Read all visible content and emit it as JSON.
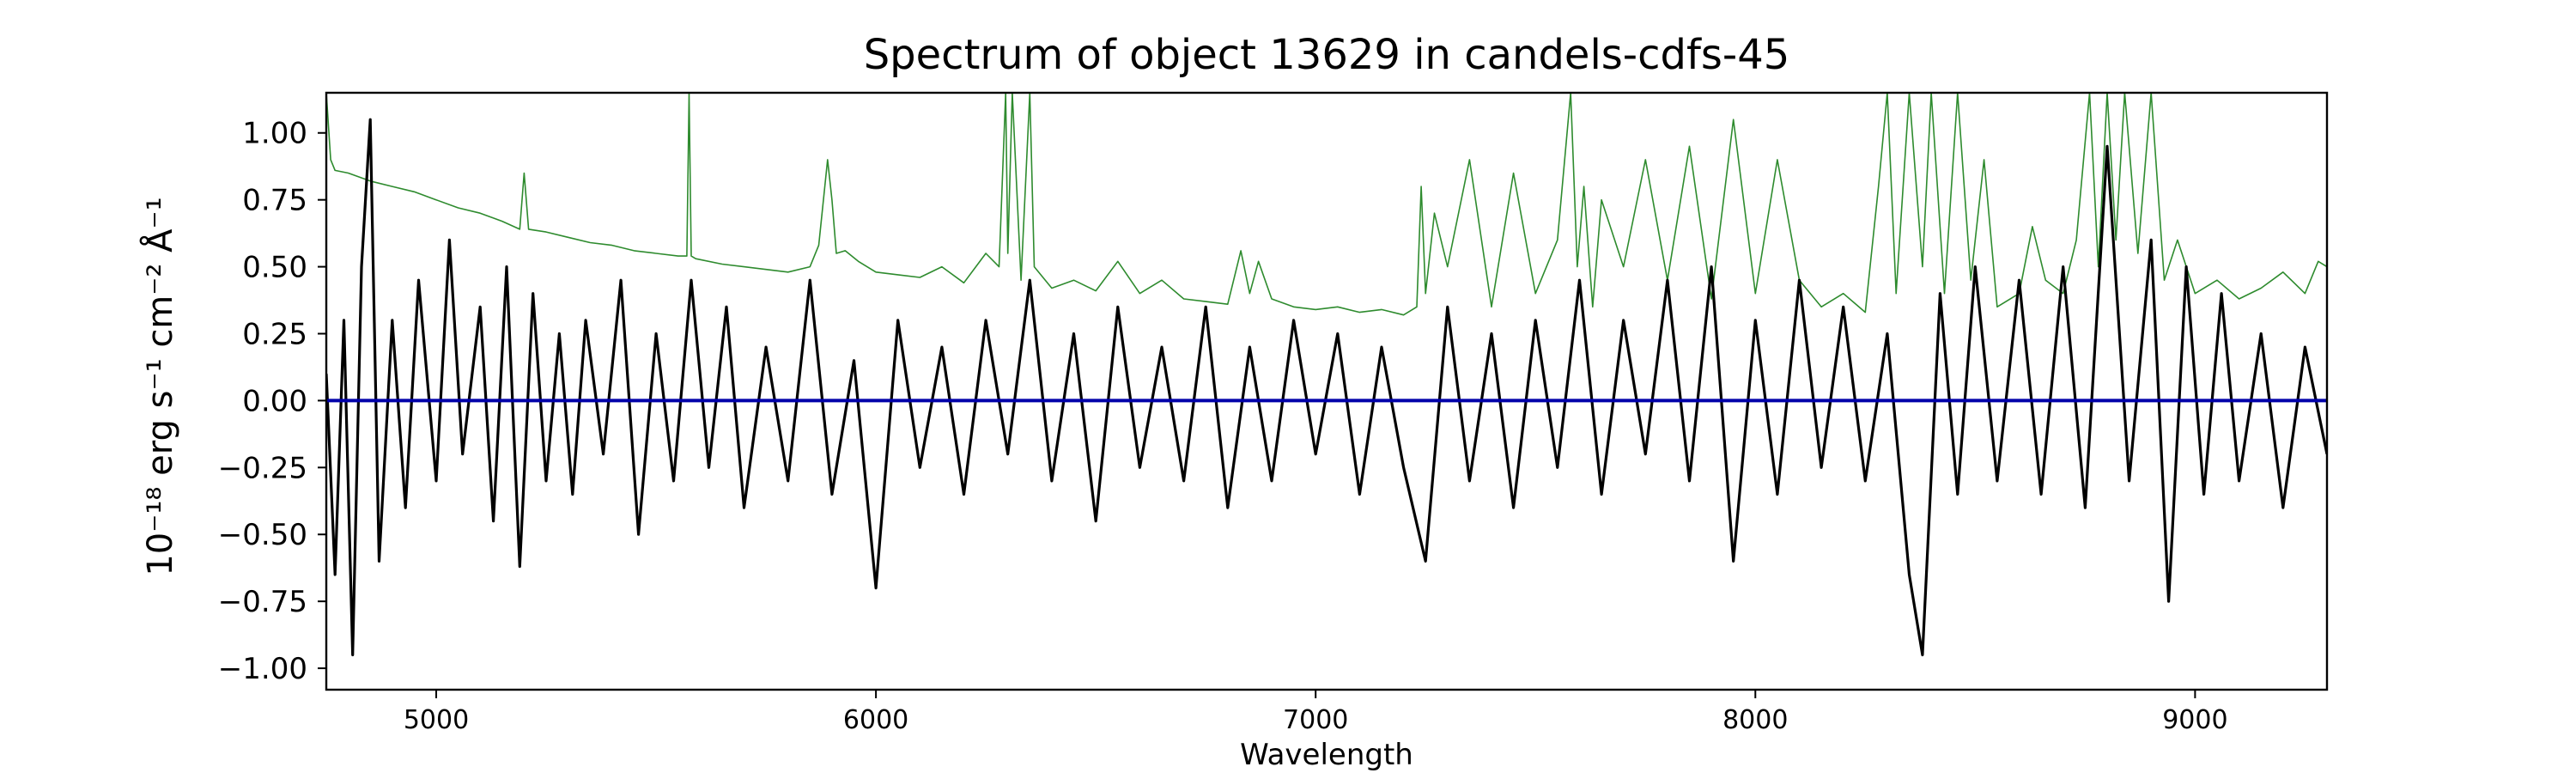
{
  "chart_data": {
    "type": "line",
    "title": "Spectrum of object 13629 in candels-cdfs-45",
    "xlabel": "Wavelength",
    "ylabel": "10⁻¹⁸ erg s⁻¹ cm⁻² Å⁻¹",
    "xlim": [
      4750,
      9300
    ],
    "ylim": [
      -1.08,
      1.15
    ],
    "xticks": [
      5000,
      6000,
      7000,
      8000,
      9000
    ],
    "yticks": [
      -1.0,
      -0.75,
      -0.5,
      -0.25,
      0.0,
      0.25,
      0.5,
      0.75,
      1.0
    ],
    "ytick_labels": [
      "−1.00",
      "−0.75",
      "−0.50",
      "−0.25",
      "0.00",
      "0.25",
      "0.50",
      "0.75",
      "1.00"
    ],
    "grid": false,
    "legend": "none",
    "series": [
      {
        "role": "flux",
        "color": "#000000",
        "x": [
          4750,
          4770,
          4790,
          4810,
          4830,
          4850,
          4870,
          4900,
          4930,
          4960,
          5000,
          5030,
          5060,
          5100,
          5130,
          5160,
          5190,
          5220,
          5250,
          5280,
          5310,
          5340,
          5380,
          5420,
          5460,
          5500,
          5540,
          5580,
          5620,
          5660,
          5700,
          5750,
          5800,
          5850,
          5900,
          5950,
          6000,
          6050,
          6100,
          6150,
          6200,
          6250,
          6300,
          6350,
          6400,
          6450,
          6500,
          6550,
          6600,
          6650,
          6700,
          6750,
          6800,
          6850,
          6900,
          6950,
          7000,
          7050,
          7100,
          7150,
          7200,
          7250,
          7300,
          7350,
          7400,
          7450,
          7500,
          7550,
          7600,
          7650,
          7700,
          7750,
          7800,
          7850,
          7900,
          7950,
          8000,
          8050,
          8100,
          8150,
          8200,
          8250,
          8300,
          8350,
          8380,
          8420,
          8460,
          8500,
          8550,
          8600,
          8650,
          8700,
          8750,
          8800,
          8850,
          8900,
          8940,
          8980,
          9020,
          9060,
          9100,
          9150,
          9200,
          9250,
          9300
        ],
        "y": [
          0.1,
          -0.65,
          0.3,
          -0.95,
          0.5,
          1.05,
          -0.6,
          0.3,
          -0.4,
          0.45,
          -0.3,
          0.6,
          -0.2,
          0.35,
          -0.45,
          0.5,
          -0.62,
          0.4,
          -0.3,
          0.25,
          -0.35,
          0.3,
          -0.2,
          0.45,
          -0.5,
          0.25,
          -0.3,
          0.45,
          -0.25,
          0.35,
          -0.4,
          0.2,
          -0.3,
          0.45,
          -0.35,
          0.15,
          -0.7,
          0.3,
          -0.25,
          0.2,
          -0.35,
          0.3,
          -0.2,
          0.45,
          -0.3,
          0.25,
          -0.45,
          0.35,
          -0.25,
          0.2,
          -0.3,
          0.35,
          -0.4,
          0.2,
          -0.3,
          0.3,
          -0.2,
          0.25,
          -0.35,
          0.2,
          -0.25,
          -0.6,
          0.35,
          -0.3,
          0.25,
          -0.4,
          0.3,
          -0.25,
          0.45,
          -0.35,
          0.3,
          -0.2,
          0.45,
          -0.3,
          0.5,
          -0.6,
          0.3,
          -0.35,
          0.45,
          -0.25,
          0.35,
          -0.3,
          0.25,
          -0.65,
          -0.95,
          0.4,
          -0.35,
          0.5,
          -0.3,
          0.45,
          -0.35,
          0.5,
          -0.4,
          0.95,
          -0.3,
          0.6,
          -0.75,
          0.5,
          -0.35,
          0.4,
          -0.3,
          0.25,
          -0.4,
          0.2,
          -0.2
        ]
      },
      {
        "role": "error",
        "color": "#2e8b2e",
        "x": [
          4750,
          4760,
          4770,
          4800,
          4850,
          4900,
          4950,
          5000,
          5050,
          5100,
          5150,
          5190,
          5200,
          5210,
          5250,
          5300,
          5350,
          5400,
          5450,
          5500,
          5550,
          5570,
          5575,
          5580,
          5590,
          5650,
          5700,
          5750,
          5800,
          5850,
          5870,
          5890,
          5900,
          5910,
          5930,
          5960,
          6000,
          6050,
          6100,
          6150,
          6200,
          6250,
          6280,
          6295,
          6300,
          6310,
          6330,
          6350,
          6360,
          6400,
          6450,
          6500,
          6550,
          6600,
          6650,
          6700,
          6750,
          6800,
          6830,
          6850,
          6870,
          6900,
          6950,
          7000,
          7050,
          7100,
          7150,
          7200,
          7230,
          7240,
          7250,
          7270,
          7300,
          7350,
          7400,
          7450,
          7500,
          7550,
          7580,
          7595,
          7610,
          7630,
          7650,
          7700,
          7750,
          7800,
          7850,
          7900,
          7950,
          8000,
          8050,
          8100,
          8150,
          8200,
          8250,
          8280,
          8300,
          8320,
          8350,
          8380,
          8400,
          8430,
          8460,
          8490,
          8520,
          8550,
          8600,
          8630,
          8660,
          8700,
          8730,
          8760,
          8780,
          8800,
          8820,
          8840,
          8870,
          8900,
          8930,
          8960,
          9000,
          9050,
          9100,
          9150,
          9200,
          9250,
          9280,
          9300
        ],
        "y": [
          1.15,
          0.9,
          0.86,
          0.85,
          0.82,
          0.8,
          0.78,
          0.75,
          0.72,
          0.7,
          0.67,
          0.64,
          0.85,
          0.64,
          0.63,
          0.61,
          0.59,
          0.58,
          0.56,
          0.55,
          0.54,
          0.54,
          1.15,
          0.54,
          0.53,
          0.51,
          0.5,
          0.49,
          0.48,
          0.5,
          0.58,
          0.9,
          0.75,
          0.55,
          0.56,
          0.52,
          0.48,
          0.47,
          0.46,
          0.5,
          0.44,
          0.55,
          0.5,
          1.15,
          0.55,
          1.15,
          0.45,
          1.15,
          0.5,
          0.42,
          0.45,
          0.41,
          0.52,
          0.4,
          0.45,
          0.38,
          0.37,
          0.36,
          0.56,
          0.4,
          0.52,
          0.38,
          0.35,
          0.34,
          0.35,
          0.33,
          0.34,
          0.32,
          0.35,
          0.8,
          0.4,
          0.7,
          0.5,
          0.9,
          0.35,
          0.85,
          0.4,
          0.6,
          1.15,
          0.5,
          0.8,
          0.35,
          0.75,
          0.5,
          0.9,
          0.45,
          0.95,
          0.38,
          1.05,
          0.4,
          0.9,
          0.45,
          0.35,
          0.4,
          0.33,
          0.8,
          1.15,
          0.4,
          1.15,
          0.5,
          1.15,
          0.4,
          1.15,
          0.45,
          0.9,
          0.35,
          0.4,
          0.65,
          0.45,
          0.4,
          0.6,
          1.15,
          0.5,
          1.15,
          0.6,
          1.15,
          0.55,
          1.15,
          0.45,
          0.6,
          0.4,
          0.45,
          0.38,
          0.42,
          0.48,
          0.4,
          0.52,
          0.5
        ]
      },
      {
        "role": "zero",
        "color": "#0000aa",
        "x": [
          4750,
          9300
        ],
        "y": [
          0.0,
          0.0
        ]
      }
    ]
  }
}
